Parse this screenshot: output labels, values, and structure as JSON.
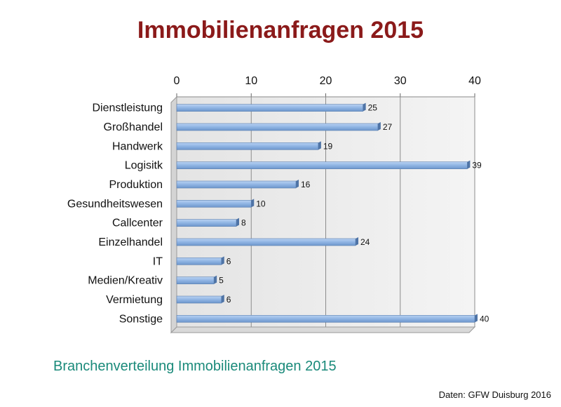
{
  "chart_data": {
    "type": "bar",
    "orientation": "horizontal",
    "title": "Immobilienanfragen 2015",
    "subtitle": "Branchenverteilung Immobilienanfragen 2015",
    "source": "Daten: GFW Duisburg 2016",
    "categories": [
      "Dienstleistung",
      "Großhandel",
      "Handwerk",
      "Logisitk",
      "Produktion",
      "Gesundheitswesen",
      "Callcenter",
      "Einzelhandel",
      "IT",
      "Medien/Kreativ",
      "Vermietung",
      "Sonstige"
    ],
    "values": [
      25,
      27,
      19,
      39,
      16,
      10,
      8,
      24,
      6,
      5,
      6,
      40
    ],
    "xlim": [
      0,
      40
    ],
    "xticks": [
      "0",
      "10",
      "20",
      "30",
      "40"
    ],
    "xaxis_position": "top",
    "grid": true,
    "bar_color": "#8fb4e3"
  }
}
